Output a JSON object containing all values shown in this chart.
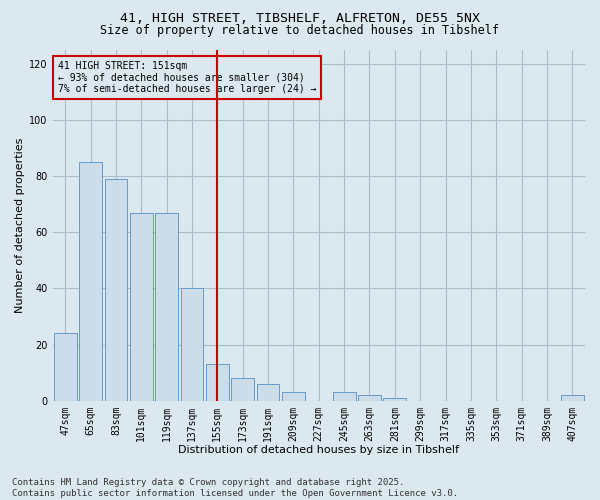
{
  "title_line1": "41, HIGH STREET, TIBSHELF, ALFRETON, DE55 5NX",
  "title_line2": "Size of property relative to detached houses in Tibshelf",
  "xlabel": "Distribution of detached houses by size in Tibshelf",
  "ylabel": "Number of detached properties",
  "categories": [
    "47sqm",
    "65sqm",
    "83sqm",
    "101sqm",
    "119sqm",
    "137sqm",
    "155sqm",
    "173sqm",
    "191sqm",
    "209sqm",
    "227sqm",
    "245sqm",
    "263sqm",
    "281sqm",
    "299sqm",
    "317sqm",
    "335sqm",
    "353sqm",
    "371sqm",
    "389sqm",
    "407sqm"
  ],
  "values": [
    24,
    85,
    79,
    67,
    67,
    40,
    13,
    8,
    6,
    3,
    0,
    3,
    2,
    1,
    0,
    0,
    0,
    0,
    0,
    0,
    2
  ],
  "bar_color": "#ccdce8",
  "bar_edge_color": "#6699cc",
  "vline_x_index": 6,
  "vline_color": "#cc0000",
  "annotation_text": "41 HIGH STREET: 151sqm\n← 93% of detached houses are smaller (304)\n7% of semi-detached houses are larger (24) →",
  "ylim": [
    0,
    125
  ],
  "yticks": [
    0,
    20,
    40,
    60,
    80,
    100,
    120
  ],
  "grid_color": "#aabccc",
  "background_color": "#dce8f0",
  "footer_text": "Contains HM Land Registry data © Crown copyright and database right 2025.\nContains public sector information licensed under the Open Government Licence v3.0.",
  "title_fontsize": 9.5,
  "title2_fontsize": 8.5,
  "axis_label_fontsize": 8,
  "tick_fontsize": 7,
  "annot_fontsize": 7,
  "footer_fontsize": 6.5
}
